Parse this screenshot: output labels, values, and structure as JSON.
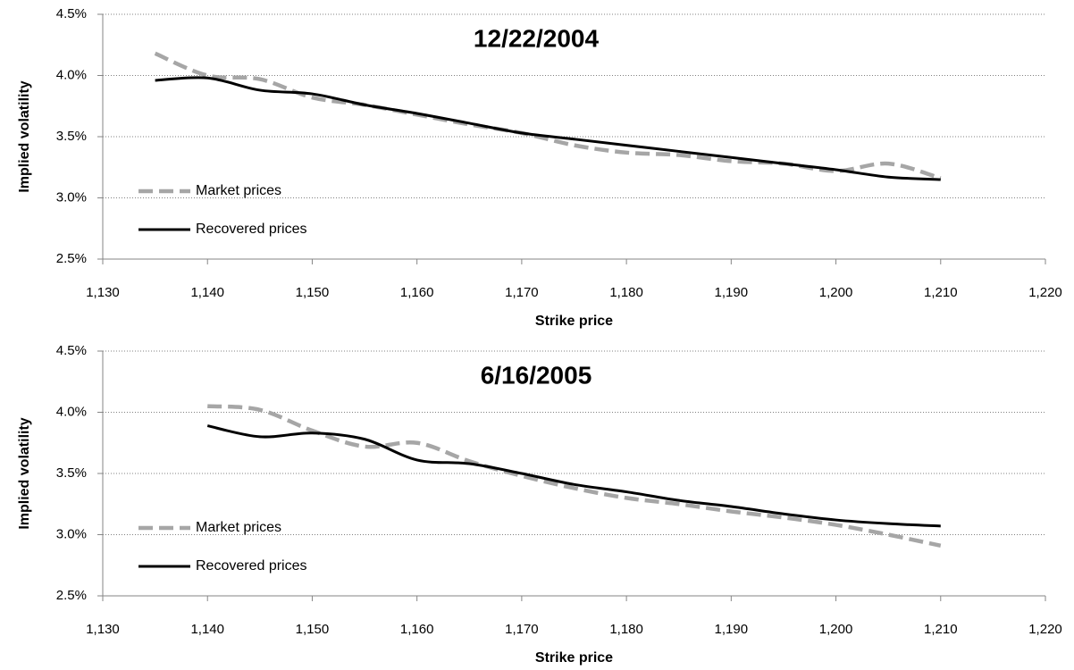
{
  "chart_data": [
    {
      "type": "line",
      "title": "12/22/2004",
      "x_label": "Strike price",
      "y_label": "Implied volatility",
      "x": [
        1135,
        1140,
        1145,
        1150,
        1155,
        1160,
        1165,
        1170,
        1175,
        1180,
        1185,
        1190,
        1195,
        1200,
        1205,
        1210
      ],
      "series": [
        {
          "name": "Market prices",
          "color": "#a6a6a6",
          "dashed": true,
          "values": [
            4.18,
            4.0,
            3.97,
            3.82,
            3.76,
            3.68,
            3.6,
            3.53,
            3.43,
            3.37,
            3.35,
            3.3,
            3.28,
            3.22,
            3.28,
            3.16
          ]
        },
        {
          "name": "Recovered prices",
          "color": "#000000",
          "dashed": false,
          "values": [
            3.96,
            3.98,
            3.88,
            3.85,
            3.76,
            3.69,
            3.61,
            3.53,
            3.48,
            3.43,
            3.38,
            3.33,
            3.28,
            3.23,
            3.17,
            3.15
          ]
        }
      ],
      "xlim": [
        1130,
        1220
      ],
      "xticks": [
        {
          "value": 1130,
          "label": "1,130"
        },
        {
          "value": 1140,
          "label": "1,140"
        },
        {
          "value": 1150,
          "label": "1,150"
        },
        {
          "value": 1160,
          "label": "1,160"
        },
        {
          "value": 1170,
          "label": "1,170"
        },
        {
          "value": 1180,
          "label": "1,180"
        },
        {
          "value": 1190,
          "label": "1,190"
        },
        {
          "value": 1200,
          "label": "1,200"
        },
        {
          "value": 1210,
          "label": "1,210"
        },
        {
          "value": 1220,
          "label": "1,220"
        }
      ],
      "ylim": [
        2.5,
        4.5
      ],
      "yticks": [
        {
          "value": 2.5,
          "label": "2.5%"
        },
        {
          "value": 3.0,
          "label": "3.0%"
        },
        {
          "value": 3.5,
          "label": "3.5%"
        },
        {
          "value": 4.0,
          "label": "4.0%"
        },
        {
          "value": 4.5,
          "label": "4.5%"
        }
      ],
      "grid": true,
      "legend": "left"
    },
    {
      "type": "line",
      "title": "6/16/2005",
      "x_label": "Strike price",
      "y_label": "Implied volatility",
      "x": [
        1140,
        1145,
        1150,
        1155,
        1160,
        1165,
        1170,
        1175,
        1180,
        1185,
        1190,
        1195,
        1200,
        1205,
        1210
      ],
      "series": [
        {
          "name": "Market prices",
          "color": "#a6a6a6",
          "dashed": true,
          "values": [
            4.05,
            4.02,
            3.85,
            3.72,
            3.75,
            3.6,
            3.48,
            3.38,
            3.3,
            3.25,
            3.19,
            3.14,
            3.08,
            3.0,
            2.91
          ]
        },
        {
          "name": "Recovered prices",
          "color": "#000000",
          "dashed": false,
          "values": [
            3.89,
            3.8,
            3.83,
            3.78,
            3.61,
            3.58,
            3.5,
            3.41,
            3.35,
            3.28,
            3.23,
            3.17,
            3.12,
            3.09,
            3.07
          ]
        }
      ],
      "xlim": [
        1130,
        1220
      ],
      "xticks": [
        {
          "value": 1130,
          "label": "1,130"
        },
        {
          "value": 1140,
          "label": "1,140"
        },
        {
          "value": 1150,
          "label": "1,150"
        },
        {
          "value": 1160,
          "label": "1,160"
        },
        {
          "value": 1170,
          "label": "1,170"
        },
        {
          "value": 1180,
          "label": "1,180"
        },
        {
          "value": 1190,
          "label": "1,190"
        },
        {
          "value": 1200,
          "label": "1,200"
        },
        {
          "value": 1210,
          "label": "1,210"
        },
        {
          "value": 1220,
          "label": "1,220"
        }
      ],
      "ylim": [
        2.5,
        4.5
      ],
      "yticks": [
        {
          "value": 2.5,
          "label": "2.5%"
        },
        {
          "value": 3.0,
          "label": "3.0%"
        },
        {
          "value": 3.5,
          "label": "3.5%"
        },
        {
          "value": 4.0,
          "label": "4.0%"
        },
        {
          "value": 4.5,
          "label": "4.5%"
        }
      ],
      "grid": true,
      "legend": "left"
    }
  ]
}
